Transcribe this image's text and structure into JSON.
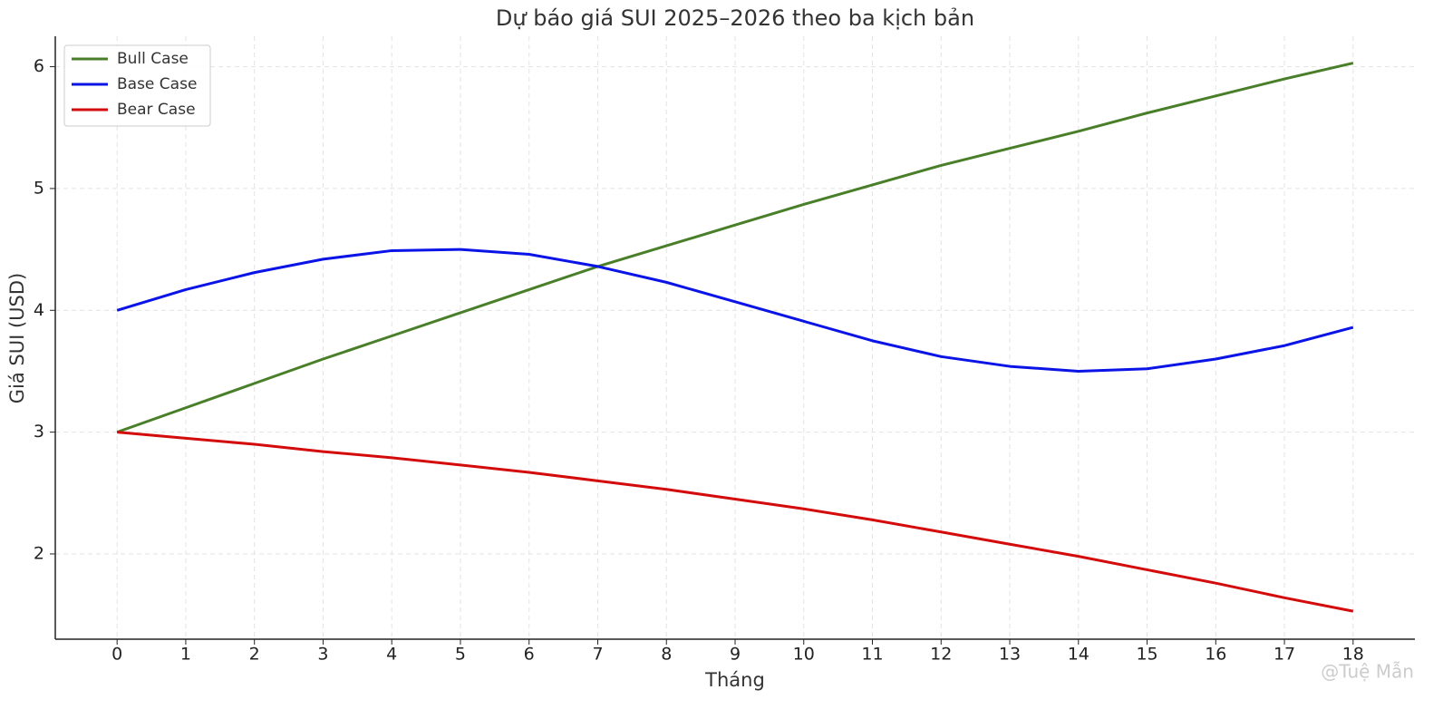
{
  "chart_data": {
    "type": "line",
    "title": "Dự báo giá SUI 2025–2026 theo ba kịch bản",
    "xlabel": "Tháng",
    "ylabel": "Giá SUI (USD)",
    "x": [
      0,
      1,
      2,
      3,
      4,
      5,
      6,
      7,
      8,
      9,
      10,
      11,
      12,
      13,
      14,
      15,
      16,
      17,
      18
    ],
    "series": [
      {
        "name": "Bull Case",
        "color": "#4a7f2a",
        "values": [
          3,
          3.2,
          3.4,
          3.6,
          3.79,
          3.98,
          4.17,
          4.36,
          4.53,
          4.7,
          4.87,
          5.03,
          5.19,
          5.33,
          5.47,
          5.62,
          5.76,
          5.9,
          6.03
        ]
      },
      {
        "name": "Base Case",
        "color": "#0a14e6",
        "values": [
          4.0,
          4.17,
          4.31,
          4.42,
          4.49,
          4.5,
          4.46,
          4.36,
          4.23,
          4.07,
          3.91,
          3.75,
          3.62,
          3.54,
          3.5,
          3.52,
          3.6,
          3.71,
          3.86
        ]
      },
      {
        "name": "Bear Case",
        "color": "#d40b0b",
        "values": [
          3,
          2.95,
          2.9,
          2.84,
          2.79,
          2.73,
          2.67,
          2.6,
          2.53,
          2.45,
          2.37,
          2.28,
          2.18,
          2.08,
          1.98,
          1.87,
          1.76,
          1.64,
          1.53
        ]
      }
    ],
    "xlim": [
      -0.9,
      18.9
    ],
    "xticks": [
      0,
      1,
      2,
      3,
      4,
      5,
      6,
      7,
      8,
      9,
      10,
      11,
      12,
      13,
      14,
      15,
      16,
      17,
      18
    ],
    "ylim": [
      1.3,
      6.25
    ],
    "yticks": [
      2,
      3,
      4,
      5,
      6
    ],
    "grid": true,
    "legend": "upper left",
    "watermark": "@Tuệ Mẫn"
  }
}
